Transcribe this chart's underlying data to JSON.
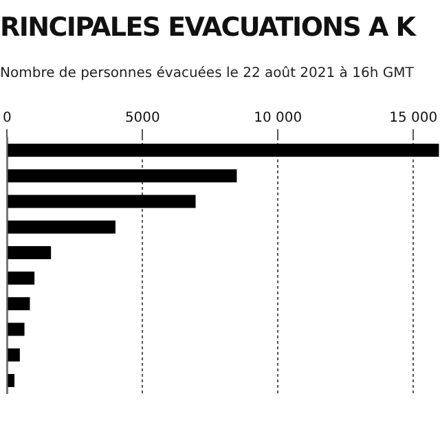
{
  "chart_data": {
    "type": "bar",
    "orientation": "horizontal",
    "title": "RINCIPALES EVACUATIONS A K",
    "subtitle": "Nombre de personnes évacuées le 22 août 2021 à 16h GMT",
    "categories": [
      null,
      null,
      null,
      null,
      null,
      null,
      null,
      null,
      null,
      null
    ],
    "values": [
      15950,
      8480,
      6960,
      4000,
      1620,
      1010,
      840,
      640,
      470,
      270
    ],
    "color": "#000000",
    "xlim": [
      0,
      15950
    ],
    "xticks": [
      0,
      5000,
      {
        "value": 10000,
        "label": "10 000"
      },
      {
        "value": 15000,
        "label": "15 000"
      }
    ],
    "grid": "x",
    "legend": false
  }
}
